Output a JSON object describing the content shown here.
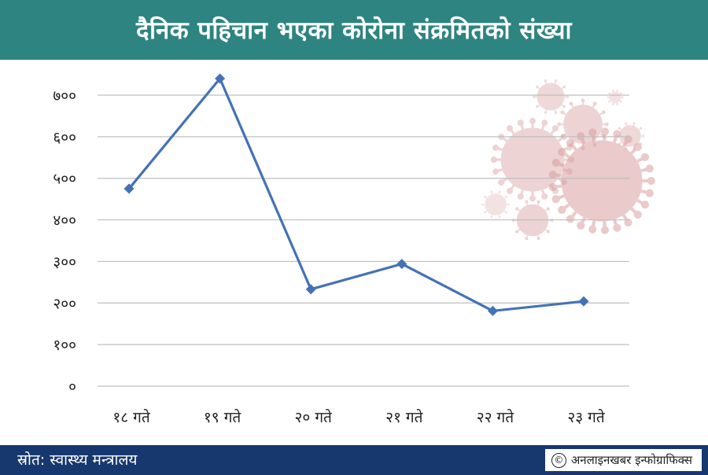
{
  "header": {
    "title": "दैनिक पहिचान भएका कोरोना संक्रमितको संख्या"
  },
  "footer": {
    "source": "स्रोत: स्वास्थ्य मन्त्रालय",
    "credit": "अनलाइनखबर इन्फोग्राफिक्स"
  },
  "colors": {
    "header_bg": "#2d8481",
    "footer_bg": "#17386e",
    "line": "#4472b5",
    "grid": "#bfbfbf",
    "virus": "#d9a0a0"
  },
  "icons": {
    "virus_illustration": "coronavirus-icon",
    "copyright": "copyright-icon"
  },
  "chart_data": {
    "type": "line",
    "categories": [
      "१८ गते",
      "१९ गते",
      "२० गते",
      "२१ गते",
      "२२ गते",
      "२३ गते"
    ],
    "values": [
      475,
      740,
      233,
      294,
      181,
      204
    ],
    "ylim": [
      0,
      700
    ],
    "yticks": [
      0,
      100,
      200,
      300,
      400,
      500,
      600,
      700
    ],
    "ytick_labels": [
      "०",
      "१००",
      "२००",
      "३००",
      "४००",
      "५००",
      "६००",
      "७००"
    ],
    "grid": true,
    "legend": "none",
    "title": "",
    "xlabel": "",
    "ylabel": ""
  }
}
